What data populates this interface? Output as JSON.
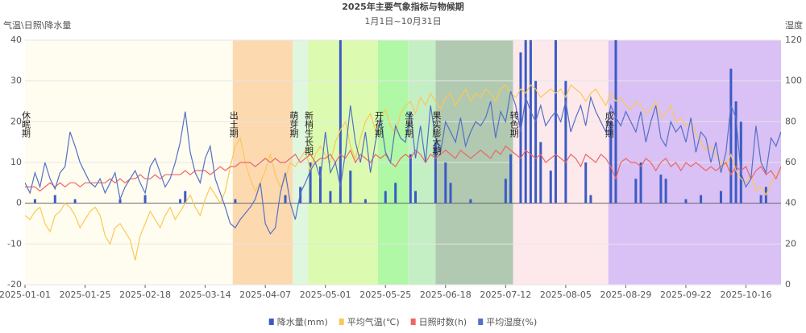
{
  "chart_data": {
    "type": "combo",
    "title": "2025年主要气象指标与物候期",
    "subtitle": "1月1日~10月31日",
    "y_label": "气温\\日照\\降水量",
    "y2_label": "湿度",
    "ylim": [
      -20,
      40
    ],
    "yticks": [
      -20,
      -10,
      0,
      10,
      20,
      30,
      40
    ],
    "y2lim": [
      0,
      120
    ],
    "y2ticks": [
      0,
      20,
      40,
      60,
      80,
      100,
      120
    ],
    "grid": true,
    "legend": "bottom",
    "x": [
      "2025-01-01",
      "2025-01-03",
      "2025-01-05",
      "2025-01-07",
      "2025-01-09",
      "2025-01-11",
      "2025-01-13",
      "2025-01-15",
      "2025-01-17",
      "2025-01-19",
      "2025-01-21",
      "2025-01-23",
      "2025-01-25",
      "2025-01-27",
      "2025-01-29",
      "2025-01-31",
      "2025-02-02",
      "2025-02-04",
      "2025-02-06",
      "2025-02-08",
      "2025-02-10",
      "2025-02-12",
      "2025-02-14",
      "2025-02-16",
      "2025-02-18",
      "2025-02-20",
      "2025-02-22",
      "2025-02-24",
      "2025-02-26",
      "2025-02-28",
      "2025-03-02",
      "2025-03-04",
      "2025-03-06",
      "2025-03-08",
      "2025-03-10",
      "2025-03-12",
      "2025-03-14",
      "2025-03-16",
      "2025-03-18",
      "2025-03-20",
      "2025-03-22",
      "2025-03-24",
      "2025-03-26",
      "2025-03-28",
      "2025-03-30",
      "2025-04-01",
      "2025-04-03",
      "2025-04-05",
      "2025-04-07",
      "2025-04-09",
      "2025-04-11",
      "2025-04-13",
      "2025-04-15",
      "2025-04-17",
      "2025-04-19",
      "2025-04-21",
      "2025-04-23",
      "2025-04-25",
      "2025-04-27",
      "2025-04-29",
      "2025-05-01",
      "2025-05-03",
      "2025-05-05",
      "2025-05-07",
      "2025-05-09",
      "2025-05-11",
      "2025-05-13",
      "2025-05-15",
      "2025-05-17",
      "2025-05-19",
      "2025-05-21",
      "2025-05-23",
      "2025-05-25",
      "2025-05-27",
      "2025-05-29",
      "2025-05-31",
      "2025-06-02",
      "2025-06-04",
      "2025-06-06",
      "2025-06-08",
      "2025-06-10",
      "2025-06-12",
      "2025-06-14",
      "2025-06-16",
      "2025-06-18",
      "2025-06-20",
      "2025-06-22",
      "2025-06-24",
      "2025-06-26",
      "2025-06-28",
      "2025-06-30",
      "2025-07-02",
      "2025-07-04",
      "2025-07-06",
      "2025-07-08",
      "2025-07-10",
      "2025-07-12",
      "2025-07-14",
      "2025-07-16",
      "2025-07-18",
      "2025-07-20",
      "2025-07-22",
      "2025-07-24",
      "2025-07-26",
      "2025-07-28",
      "2025-07-30",
      "2025-08-01",
      "2025-08-03",
      "2025-08-05",
      "2025-08-07",
      "2025-08-09",
      "2025-08-11",
      "2025-08-13",
      "2025-08-15",
      "2025-08-17",
      "2025-08-19",
      "2025-08-21",
      "2025-08-23",
      "2025-08-25",
      "2025-08-27",
      "2025-08-29",
      "2025-08-31",
      "2025-09-02",
      "2025-09-04",
      "2025-09-06",
      "2025-09-08",
      "2025-09-10",
      "2025-09-12",
      "2025-09-14",
      "2025-09-16",
      "2025-09-18",
      "2025-09-20",
      "2025-09-22",
      "2025-09-24",
      "2025-09-26",
      "2025-09-28",
      "2025-09-30",
      "2025-10-02",
      "2025-10-04",
      "2025-10-06",
      "2025-10-08",
      "2025-10-10",
      "2025-10-12",
      "2025-10-14",
      "2025-10-16",
      "2025-10-18",
      "2025-10-20",
      "2025-10-22",
      "2025-10-24",
      "2025-10-26",
      "2025-10-28",
      "2025-10-30"
    ],
    "periods": [
      {
        "name": "休眠期",
        "start": "2025-01-01",
        "end": "2025-03-25",
        "color": "#fffdf0"
      },
      {
        "name": "出土期",
        "start": "2025-03-25",
        "end": "2025-04-18",
        "color": "#fdd9b0"
      },
      {
        "name": "萌芽期",
        "start": "2025-04-18",
        "end": "2025-04-24",
        "color": "#dff7df"
      },
      {
        "name": "新梢生长期",
        "start": "2025-04-24",
        "end": "2025-05-22",
        "color": "#dcfbb0"
      },
      {
        "name": "开花期",
        "start": "2025-05-22",
        "end": "2025-06-03",
        "color": "#b0f7a6"
      },
      {
        "name": "坐果期",
        "start": "2025-06-03",
        "end": "2025-06-14",
        "color": "#c4efc4"
      },
      {
        "name": "果实膨大期",
        "start": "2025-06-14",
        "end": "2025-07-15",
        "color": "#b0c9b0"
      },
      {
        "name": "转色期",
        "start": "2025-07-15",
        "end": "2025-08-22",
        "color": "#fde9ec"
      },
      {
        "name": "成熟期",
        "start": "2025-08-22",
        "end": "2025-10-31",
        "color": "#d9c0f5"
      }
    ],
    "series": [
      {
        "name": "降水量(mm)",
        "kind": "bar",
        "color": "#3b5bc4",
        "values": [
          0,
          0,
          1,
          0,
          0,
          0,
          2,
          0,
          0,
          0,
          1,
          0,
          0,
          0,
          0,
          0,
          0,
          0,
          0,
          1,
          0,
          0,
          0,
          0,
          2,
          0,
          0,
          0,
          0,
          0,
          0,
          1,
          3,
          0,
          0,
          0,
          0,
          0,
          0,
          0,
          0,
          0,
          1,
          0,
          0,
          0,
          0,
          0,
          0,
          0,
          0,
          0,
          2,
          0,
          0,
          4,
          0,
          10,
          0,
          9,
          0,
          3,
          0,
          45,
          0,
          8,
          0,
          0,
          1,
          0,
          0,
          0,
          3,
          0,
          5,
          0,
          0,
          12,
          3,
          0,
          0,
          0,
          15,
          0,
          10,
          5,
          0,
          0,
          0,
          1,
          0,
          0,
          0,
          0,
          0,
          0,
          6,
          12,
          0,
          37,
          50,
          45,
          30,
          15,
          0,
          8,
          45,
          0,
          30,
          0,
          0,
          0,
          10,
          2,
          0,
          0,
          0,
          20,
          45,
          0,
          0,
          0,
          6,
          10,
          0,
          0,
          0,
          7,
          6,
          0,
          0,
          0,
          1,
          0,
          0,
          2,
          0,
          0,
          0,
          3,
          0,
          33,
          25,
          20,
          0,
          0,
          0,
          2,
          4,
          0,
          0,
          0
        ]
      },
      {
        "name": "平均气温(℃)",
        "kind": "line",
        "color": "#fac858",
        "values": [
          -3,
          -4,
          -2,
          -1,
          -5,
          -7,
          -3,
          -2,
          0,
          -1,
          -3,
          -6,
          -4,
          -2,
          -1,
          -3,
          -8,
          -10,
          -6,
          -5,
          -7,
          -9,
          -14,
          -8,
          -5,
          -2,
          -4,
          -6,
          -3,
          -1,
          -4,
          -2,
          0,
          2,
          -1,
          -3,
          1,
          4,
          2,
          0,
          3,
          9,
          14,
          16,
          10,
          6,
          3,
          5,
          8,
          12,
          7,
          4,
          6,
          10,
          9,
          11,
          13,
          8,
          12,
          14,
          12,
          10,
          15,
          18,
          20,
          14,
          11,
          16,
          20,
          22,
          18,
          21,
          23,
          19,
          17,
          22,
          24,
          25,
          22,
          26,
          24,
          27,
          25,
          23,
          26,
          27,
          24,
          26,
          28,
          25,
          27,
          26,
          28,
          27,
          25,
          28,
          29,
          27,
          26,
          28,
          27,
          29,
          28,
          26,
          27,
          28,
          27,
          28,
          26,
          29,
          28,
          27,
          25,
          27,
          28,
          26,
          24,
          27,
          25,
          26,
          24,
          23,
          25,
          24,
          22,
          23,
          25,
          21,
          22,
          24,
          20,
          21,
          19,
          20,
          17,
          15,
          13,
          14,
          12,
          10,
          9,
          12,
          8,
          6,
          5,
          7,
          3,
          4,
          2,
          5,
          7,
          8
        ]
      },
      {
        "name": "日照时数(h)",
        "kind": "line",
        "color": "#ee6666",
        "values": [
          4,
          4,
          4,
          3,
          4,
          5,
          4,
          5,
          4,
          5,
          5,
          4,
          5,
          5,
          5,
          5,
          5,
          6,
          5,
          6,
          5,
          6,
          6,
          7,
          6,
          6,
          7,
          6,
          7,
          7,
          7,
          7,
          8,
          7,
          8,
          8,
          8,
          7,
          8,
          9,
          8,
          9,
          9,
          10,
          10,
          10,
          9,
          10,
          11,
          10,
          11,
          10,
          10,
          11,
          12,
          10,
          11,
          12,
          10,
          11,
          11,
          12,
          10,
          12,
          11,
          13,
          10,
          12,
          11,
          10,
          12,
          11,
          12,
          10,
          9,
          11,
          12,
          11,
          13,
          12,
          10,
          12,
          11,
          12,
          13,
          12,
          11,
          13,
          12,
          11,
          12,
          13,
          12,
          11,
          13,
          12,
          14,
          13,
          12,
          11,
          13,
          12,
          11,
          12,
          10,
          11,
          12,
          11,
          10,
          12,
          11,
          9,
          12,
          11,
          10,
          12,
          11,
          9,
          6,
          10,
          11,
          10,
          10,
          9,
          11,
          10,
          8,
          10,
          11,
          9,
          10,
          8,
          10,
          9,
          10,
          9,
          8,
          9,
          8,
          9,
          10,
          7,
          9,
          8,
          9,
          6,
          8,
          9,
          7,
          8,
          6,
          9
        ]
      },
      {
        "name": "平均湿度(%)",
        "kind": "line",
        "axis": "y2",
        "color": "#5470c6",
        "values": [
          50,
          45,
          55,
          48,
          60,
          52,
          47,
          55,
          58,
          75,
          68,
          60,
          55,
          50,
          48,
          52,
          45,
          50,
          55,
          42,
          48,
          52,
          56,
          50,
          45,
          58,
          62,
          55,
          48,
          52,
          60,
          70,
          85,
          65,
          55,
          50,
          62,
          68,
          52,
          45,
          38,
          30,
          28,
          32,
          35,
          38,
          42,
          50,
          30,
          25,
          28,
          45,
          55,
          40,
          32,
          45,
          50,
          56,
          60,
          52,
          75,
          55,
          60,
          48,
          65,
          88,
          70,
          60,
          75,
          55,
          70,
          82,
          65,
          60,
          78,
          72,
          70,
          85,
          62,
          78,
          60,
          88,
          72,
          65,
          80,
          75,
          70,
          82,
          68,
          75,
          80,
          78,
          82,
          90,
          72,
          85,
          80,
          95,
          88,
          75,
          92,
          85,
          80,
          88,
          78,
          82,
          85,
          80,
          90,
          75,
          82,
          88,
          78,
          92,
          85,
          80,
          75,
          88,
          82,
          78,
          85,
          80,
          75,
          85,
          70,
          80,
          88,
          72,
          68,
          80,
          75,
          78,
          70,
          82,
          65,
          75,
          72,
          60,
          70,
          55,
          65,
          88,
          82,
          55,
          48,
          52,
          78,
          60,
          55,
          72,
          68,
          75
        ]
      }
    ]
  }
}
